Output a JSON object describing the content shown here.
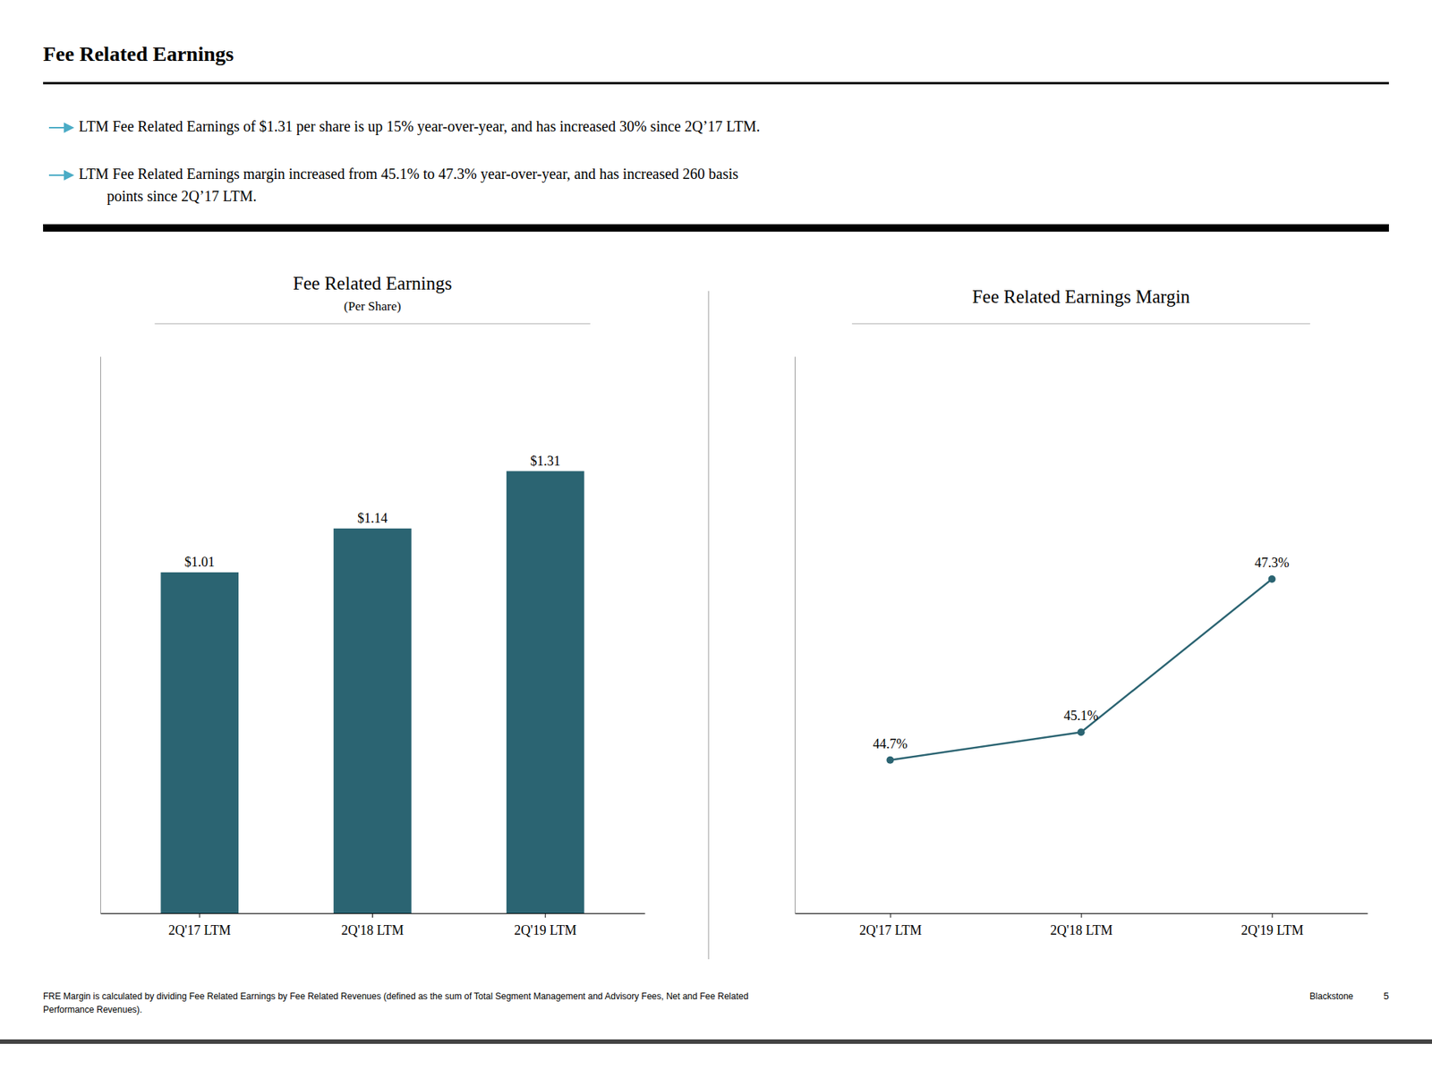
{
  "title": "Fee Related Earnings",
  "annotations": [
    "LTM Fee Related Earnings of $1.31 per share is up 15% year-over-year, and has increased 30% since 2Q’17 LTM.",
    "LTM Fee Related Earnings margin increased from 45.1% to 47.3% year-over-year, and has increased 260 basis",
    "points since 2Q’17 LTM."
  ],
  "footer": [
    "FRE Margin is calculated by dividing Fee Related Earnings by Fee Related Revenues (defined as the sum of Total Segment Management and Advisory Fees, Net and Fee Related",
    "Performance Revenues).",
    "Blackstone",
    "5"
  ],
  "chart_data": [
    {
      "type": "bar",
      "title": "Fee Related Earnings",
      "subtitle": "(Per Share)",
      "categories": [
        "2Q'17 LTM",
        "2Q'18 LTM",
        "2Q'19 LTM"
      ],
      "values": [
        1.01,
        1.14,
        1.31
      ],
      "value_labels": [
        "$1.01",
        "$1.14",
        "$1.31"
      ],
      "color": "#2b6472",
      "ylim": [
        0,
        1.65
      ],
      "data_labels": true,
      "tick_labels": "x"
    },
    {
      "type": "line",
      "title": "Fee Related Earnings Margin",
      "categories": [
        "2Q'17 LTM",
        "2Q'18 LTM",
        "2Q'19 LTM"
      ],
      "values": [
        44.7,
        45.1,
        47.3
      ],
      "value_labels": [
        "44.7%",
        "45.1%",
        "47.3%"
      ],
      "color": "#2b6472",
      "marker": "circle",
      "ylim": [
        42.5,
        50.5
      ],
      "data_labels": true,
      "tick_labels": "x"
    }
  ]
}
